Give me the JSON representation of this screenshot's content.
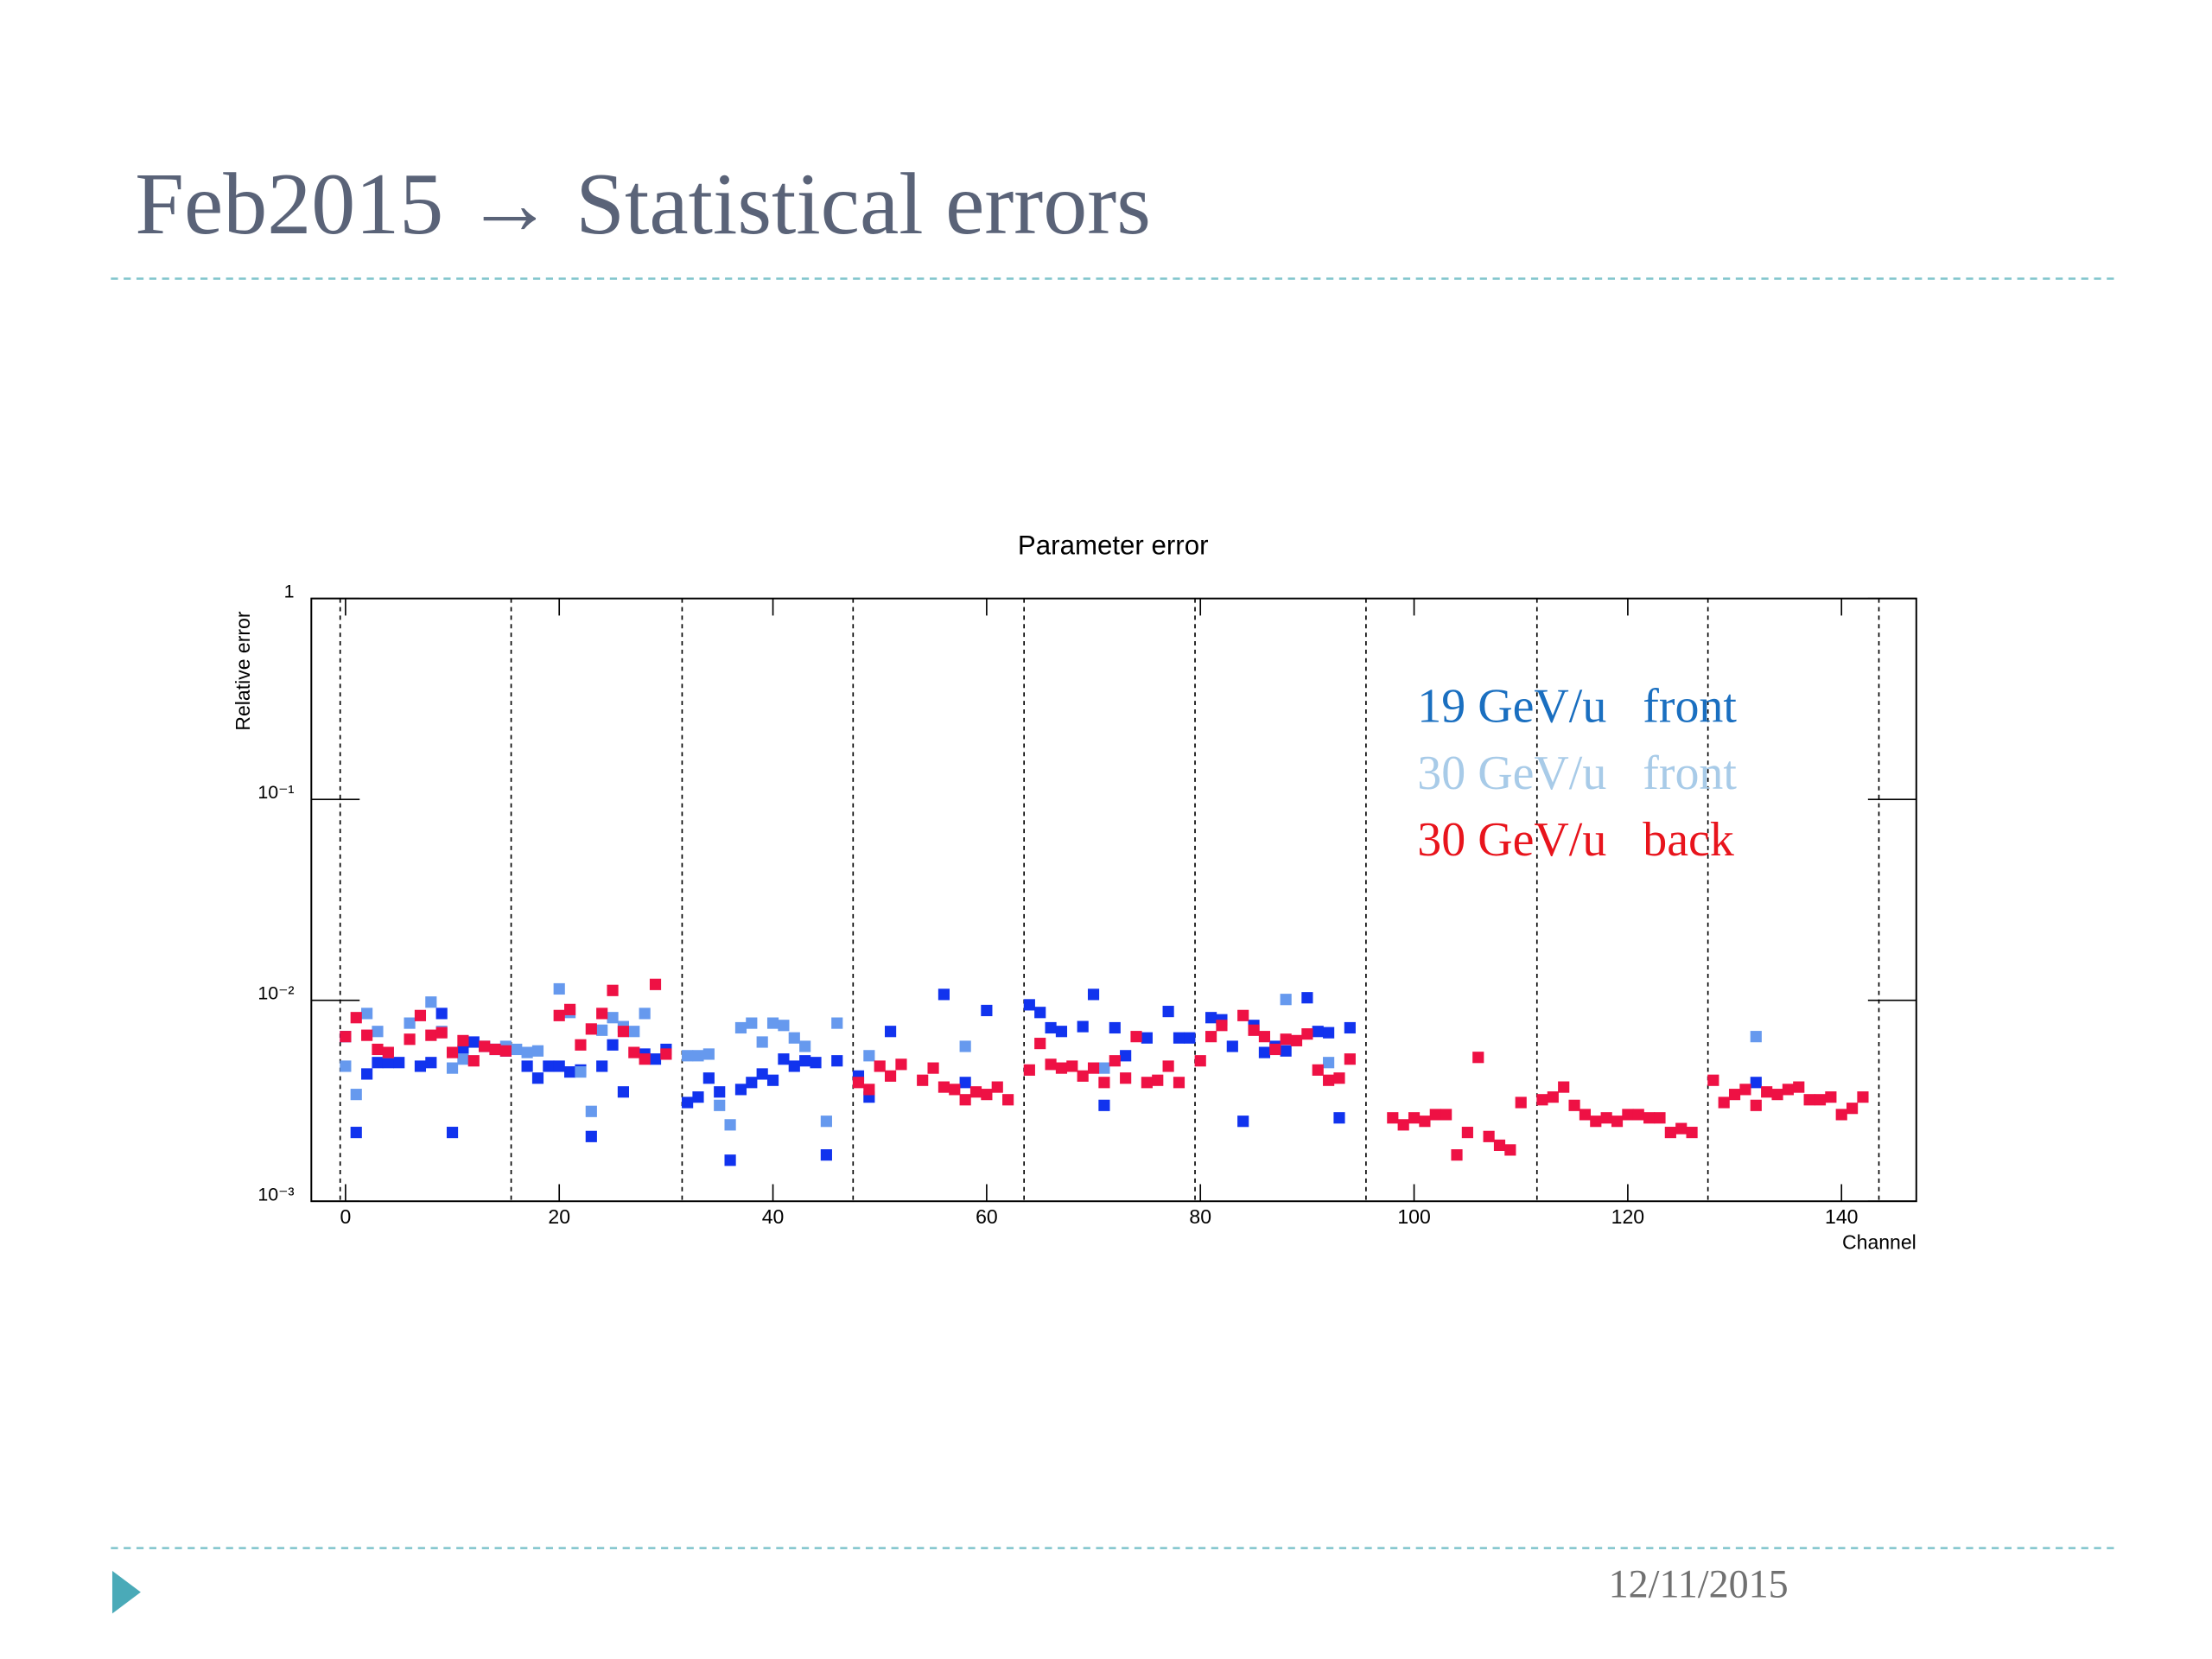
{
  "slide": {
    "title": "Feb2015 → Statistical errors",
    "date": "12/11/2015"
  },
  "chart_data": {
    "type": "scatter",
    "title": "Parameter error",
    "x_label": "Channel",
    "y_label": "Relative error",
    "log_y": true,
    "xlim": [
      -3.2,
      147
    ],
    "ylim": [
      0.001,
      1
    ],
    "xticks": [
      0,
      20,
      40,
      60,
      80,
      100,
      120,
      140
    ],
    "yticks": [
      {
        "value": 0.001,
        "label": "10⁻³"
      },
      {
        "value": 0.01,
        "label": "10⁻²"
      },
      {
        "value": 0.1,
        "label": "10⁻¹"
      },
      1
    ],
    "separators": [
      -0.5,
      15.5,
      31.5,
      47.5,
      63.5,
      79.5,
      95.5,
      111.5,
      127.5,
      143.5
    ],
    "legend": "upper-right",
    "series": [
      {
        "name": "19 GeV/u   front",
        "color": "#1133ee",
        "legend_color": "#1a6fc0",
        "x": [
          0,
          1,
          2,
          3,
          4,
          5,
          7,
          8,
          9,
          10,
          11,
          12,
          13,
          14,
          15,
          17,
          18,
          19,
          20,
          21,
          22,
          23,
          24,
          25,
          26,
          28,
          29,
          30,
          32,
          33,
          34,
          35,
          36,
          37,
          38,
          39,
          40,
          41,
          42,
          43,
          44,
          45,
          46,
          48,
          49,
          51,
          56,
          58,
          60,
          64,
          65,
          66,
          67,
          69,
          70,
          71,
          72,
          73,
          75,
          77,
          78,
          79,
          81,
          82,
          83,
          84,
          85,
          86,
          87,
          88,
          90,
          91,
          92,
          93,
          94,
          132
        ],
        "values": [
          0.0066,
          0.0022,
          0.0043,
          0.0049,
          0.0049,
          0.0049,
          0.0047,
          0.0049,
          0.0086,
          0.0022,
          0.0056,
          0.0062,
          0.0059,
          0.0057,
          0.0056,
          0.0047,
          0.0041,
          0.0047,
          0.0047,
          0.0044,
          0.0045,
          0.0021,
          0.0047,
          0.006,
          0.0035,
          0.0054,
          0.0051,
          0.0057,
          0.0031,
          0.0033,
          0.0041,
          0.0035,
          0.0016,
          0.0036,
          0.0039,
          0.0043,
          0.004,
          0.0051,
          0.0047,
          0.005,
          0.0049,
          0.0017,
          0.005,
          0.0042,
          0.0033,
          0.007,
          0.0107,
          0.0039,
          0.0089,
          0.0095,
          0.0087,
          0.0073,
          0.007,
          0.0074,
          0.0107,
          0.003,
          0.0073,
          0.0053,
          0.0065,
          0.0088,
          0.0065,
          0.0065,
          0.0082,
          0.008,
          0.0059,
          0.0025,
          0.0075,
          0.0055,
          0.0059,
          0.0056,
          0.0103,
          0.007,
          0.0069,
          0.0026,
          0.0073,
          0.0039
        ]
      },
      {
        "name": "30 GeV/u   front",
        "color": "#6699ee",
        "legend_color": "#a8cbe8",
        "x": [
          0,
          1,
          2,
          3,
          4,
          6,
          8,
          9,
          10,
          11,
          15,
          16,
          17,
          18,
          20,
          21,
          22,
          23,
          24,
          25,
          26,
          27,
          28,
          32,
          33,
          34,
          35,
          36,
          37,
          38,
          39,
          40,
          41,
          42,
          43,
          45,
          46,
          49,
          58,
          71,
          88,
          92,
          132
        ],
        "values": [
          0.0047,
          0.0034,
          0.0086,
          0.007,
          0.0055,
          0.0077,
          0.0098,
          0.007,
          0.0046,
          0.0051,
          0.0059,
          0.0057,
          0.0055,
          0.0056,
          0.0114,
          0.0087,
          0.0044,
          0.0028,
          0.0071,
          0.0082,
          0.0074,
          0.007,
          0.0086,
          0.0053,
          0.0053,
          0.0054,
          0.003,
          0.0024,
          0.0073,
          0.0077,
          0.0062,
          0.0077,
          0.0075,
          0.0065,
          0.0059,
          0.0025,
          0.0077,
          0.0053,
          0.0059,
          0.0046,
          0.0101,
          0.0049,
          0.0066
        ]
      },
      {
        "name": "30 GeV/u   back",
        "color": "#ee1144",
        "legend_color": "#e8141c",
        "x": [
          0,
          1,
          2,
          3,
          4,
          6,
          7,
          8,
          9,
          10,
          11,
          12,
          13,
          14,
          15,
          20,
          21,
          22,
          23,
          24,
          25,
          26,
          27,
          28,
          29,
          30,
          48,
          49,
          50,
          51,
          52,
          54,
          55,
          56,
          57,
          58,
          59,
          60,
          61,
          62,
          64,
          65,
          66,
          67,
          68,
          69,
          70,
          71,
          72,
          73,
          74,
          75,
          76,
          77,
          78,
          80,
          81,
          82,
          84,
          85,
          86,
          87,
          88,
          89,
          90,
          91,
          92,
          93,
          94,
          98,
          99,
          100,
          101,
          102,
          103,
          104,
          105,
          106,
          107,
          108,
          109,
          110,
          112,
          113,
          114,
          115,
          116,
          117,
          118,
          119,
          120,
          121,
          122,
          123,
          124,
          125,
          126,
          128,
          129,
          130,
          131,
          132,
          133,
          134,
          135,
          136,
          137,
          138,
          139,
          140,
          141,
          142
        ],
        "values": [
          0.0066,
          0.0082,
          0.0067,
          0.0057,
          0.0055,
          0.0064,
          0.0084,
          0.0067,
          0.0069,
          0.0055,
          0.0063,
          0.005,
          0.0059,
          0.0057,
          0.0056,
          0.0084,
          0.009,
          0.006,
          0.0072,
          0.0086,
          0.0112,
          0.007,
          0.0055,
          0.0051,
          0.012,
          0.0054,
          0.0039,
          0.0036,
          0.0047,
          0.0042,
          0.0048,
          0.004,
          0.0046,
          0.0037,
          0.0036,
          0.0032,
          0.0035,
          0.0034,
          0.0037,
          0.0032,
          0.0045,
          0.0061,
          0.0048,
          0.0046,
          0.0047,
          0.0042,
          0.0046,
          0.0039,
          0.005,
          0.0041,
          0.0066,
          0.0039,
          0.004,
          0.0047,
          0.0039,
          0.005,
          0.0066,
          0.0075,
          0.0084,
          0.0071,
          0.0066,
          0.0057,
          0.0064,
          0.0063,
          0.0068,
          0.0045,
          0.004,
          0.0041,
          0.0051,
          0.0026,
          0.0024,
          0.0026,
          0.0025,
          0.0027,
          0.0027,
          0.0017,
          0.0022,
          0.0052,
          0.0021,
          0.0019,
          0.0018,
          0.0031,
          0.0032,
          0.0033,
          0.0037,
          0.003,
          0.0027,
          0.0025,
          0.0026,
          0.0025,
          0.0027,
          0.0027,
          0.0026,
          0.0026,
          0.0022,
          0.0023,
          0.0022,
          0.004,
          0.0031,
          0.0034,
          0.0036,
          0.003,
          0.0035,
          0.0034,
          0.0036,
          0.0037,
          0.0032,
          0.0032,
          0.0033,
          0.0027,
          0.0029,
          0.0033
        ]
      }
    ]
  }
}
